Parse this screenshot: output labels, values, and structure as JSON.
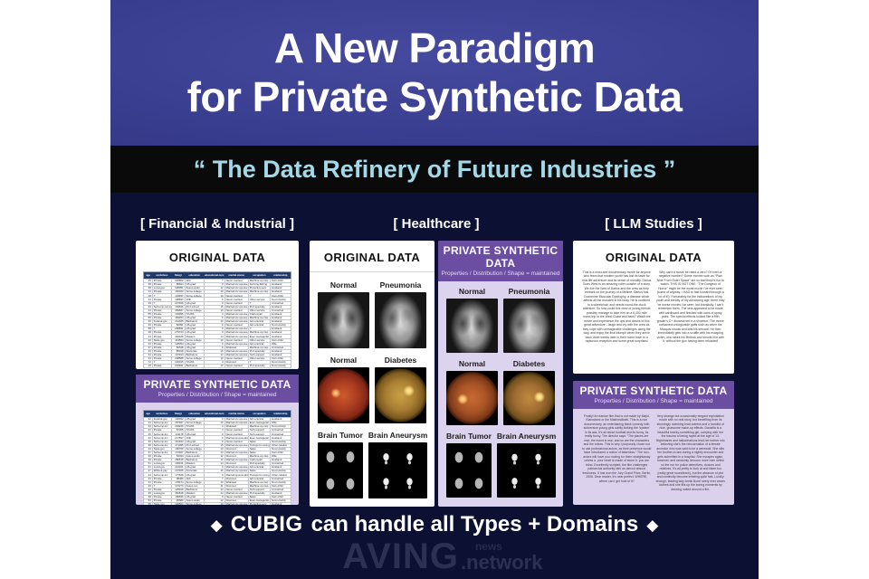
{
  "title": {
    "line1": "A New Paradigm",
    "line2": "for Private Synthetic Data"
  },
  "banner": "“ The Data Refinery of Future Industries ”",
  "columns": {
    "financial": "[ Financial & Industrial ]",
    "healthcare": "[ Healthcare ]",
    "llm": "[ LLM Studies ]"
  },
  "labels": {
    "original": "ORIGINAL DATA",
    "synthetic": "PRIVATE SYNTHETIC DATA",
    "synthetic_sub": "Properties / Distribution / Shape = maintained"
  },
  "financial": {
    "table_headers": [
      "age",
      "workclass",
      "fnlwgt",
      "education",
      "educational-num",
      "marital-status",
      "occupation",
      "relationship"
    ],
    "original_rows": [
      [
        "25",
        "Private",
        "226802",
        "11th",
        "7",
        "Never-married",
        "Machine-op-insp",
        "Own-child"
      ],
      [
        "38",
        "Private",
        "89814",
        "HS-grad",
        "9",
        "Married-civ-spouse",
        "Farming-fishing",
        "Husband"
      ],
      [
        "28",
        "Local-gov",
        "336951",
        "Assoc-acdm",
        "12",
        "Married-civ-spouse",
        "Protective-serv",
        "Husband"
      ],
      [
        "44",
        "Private",
        "160323",
        "Some-college",
        "10",
        "Married-civ-spouse",
        "Machine-op-insp",
        "Husband"
      ],
      [
        "18",
        "?",
        "103497",
        "Some-college",
        "10",
        "Never-married",
        "?",
        "Own-child"
      ],
      [
        "34",
        "Private",
        "198693",
        "10th",
        "6",
        "Never-married",
        "Other-service",
        "Not-in-family"
      ],
      [
        "29",
        "?",
        "227026",
        "HS-grad",
        "9",
        "Never-married",
        "?",
        "Unmarried"
      ],
      [
        "63",
        "Self-emp-not-inc",
        "104626",
        "Prof-school",
        "15",
        "Married-civ-spouse",
        "Prof-specialty",
        "Husband"
      ],
      [
        "24",
        "Private",
        "369667",
        "Some-college",
        "10",
        "Never-married",
        "Other-service",
        "Unmarried"
      ],
      [
        "55",
        "Private",
        "104996",
        "7th-8th",
        "4",
        "Married-civ-spouse",
        "Craft-repair",
        "Husband"
      ],
      [
        "65",
        "Private",
        "184454",
        "HS-grad",
        "9",
        "Married-civ-spouse",
        "Machine-op-insp",
        "Husband"
      ],
      [
        "36",
        "Federal-gov",
        "212465",
        "Bachelors",
        "13",
        "Married-civ-spouse",
        "Adm-clerical",
        "Husband"
      ],
      [
        "26",
        "Private",
        "82091",
        "HS-grad",
        "9",
        "Never-married",
        "Adm-clerical",
        "Not-in-family"
      ],
      [
        "58",
        "?",
        "299831",
        "HS-grad",
        "9",
        "Married-civ-spouse",
        "?",
        "Husband"
      ],
      [
        "48",
        "Private",
        "279724",
        "HS-grad",
        "9",
        "Married-civ-spouse",
        "Machine-op-insp",
        "Husband"
      ],
      [
        "43",
        "Private",
        "346189",
        "Masters",
        "14",
        "Married-civ-spouse",
        "Exec-managerial",
        "Husband"
      ],
      [
        "20",
        "State-gov",
        "444554",
        "Some-college",
        "10",
        "Never-married",
        "Other-service",
        "Own-child"
      ],
      [
        "43",
        "Private",
        "128354",
        "HS-grad",
        "9",
        "Married-civ-spouse",
        "Adm-clerical",
        "Wife"
      ],
      [
        "37",
        "Private",
        "60548",
        "HS-grad",
        "9",
        "Widowed",
        "Machine-op-insp",
        "Unmarried"
      ],
      [
        "40",
        "Private",
        "85019",
        "Doctorate",
        "16",
        "Married-civ-spouse",
        "Prof-specialty",
        "Husband"
      ],
      [
        "34",
        "Private",
        "107914",
        "Bachelors",
        "13",
        "Married-civ-spouse",
        "Tech-support",
        "Husband"
      ],
      [
        "34",
        "Private",
        "238588",
        "Some-college",
        "10",
        "Never-married",
        "Other-service",
        "Own-child"
      ],
      [
        "72",
        "?",
        "132015",
        "7th-8th",
        "4",
        "Divorced",
        "?",
        "Not-in-family"
      ],
      [
        "25",
        "Private",
        "220931",
        "Bachelors",
        "13",
        "Never-married",
        "Prof-specialty",
        "Not-in-family"
      ]
    ],
    "synthetic_rows": [
      [
        "32",
        "Federal-gov",
        "140092",
        "HS-grad",
        "9",
        "Married-civ-spouse",
        "Adm-clerical",
        "Husband"
      ],
      [
        "41",
        "Self-emp-inc",
        "287927",
        "Some-college",
        "10",
        "Married-civ-spouse",
        "Exec-managerial",
        "Wife"
      ],
      [
        "23",
        "Self-emp-inc",
        "204226",
        "7th-8th",
        "4",
        "Widowed",
        "Machine-op-insp",
        "Not-in-family"
      ],
      [
        "41",
        "Private",
        "87205",
        "7th-8th",
        "4",
        "Never-married",
        "Tech-support",
        "Unmarried"
      ],
      [
        "25",
        "Self-emp-inc",
        "131178",
        "HS-grad",
        "9",
        "Never-married",
        "Tech-support",
        "Unmarried"
      ],
      [
        "42",
        "Self-emp-inc",
        "217597",
        "10th",
        "6",
        "Married-spouse-absent",
        "Exec-managerial",
        "Husband"
      ],
      [
        "30",
        "Self-emp-inc",
        "151910",
        "HS-grad",
        "9",
        "Never-married",
        "Sales",
        "Not-in-family"
      ],
      [
        "38",
        "Self-emp-inc",
        "171095",
        "Prof-school",
        "15",
        "Married-civ-spouse",
        "Transport-moving",
        "Other-relative"
      ],
      [
        "23",
        "State-gov",
        "190709",
        "Some-college",
        "10",
        "Divorced",
        "Sales",
        "Not-in-family"
      ],
      [
        "37",
        "Self-emp-inc",
        "172927",
        "Bachelors",
        "13",
        "Married-civ-spouse",
        "Sales",
        "Own-child"
      ],
      [
        "30",
        "Private",
        "54334",
        "Assoc-acdm",
        "12",
        "Divorced",
        "Machine-op-insp",
        "Wife"
      ],
      [
        "29",
        "Private",
        "280618",
        "Bachelors",
        "13",
        "Married-civ-spouse",
        "Craft-repair",
        "Husband"
      ],
      [
        "51",
        "Local-gov",
        "106151",
        "Masters",
        "14",
        "Divorced",
        "Prof-specialty",
        "Unmarried"
      ],
      [
        "61",
        "Local-gov",
        "213321",
        "HS-grad",
        "9",
        "Married-civ-spouse",
        "Adm-clerical",
        "Husband"
      ],
      [
        "27",
        "Without-pay",
        "237466",
        "Doctorate",
        "16",
        "Married-civ-spouse",
        "Sales",
        "Not-in-family"
      ],
      [
        "34",
        "Self-emp-inc",
        "177828",
        "HS-grad",
        "9",
        "Married-spouse-absent",
        "Transport-moving",
        "Other-relative"
      ],
      [
        "44",
        "Private",
        "98466",
        "11th",
        "7",
        "Divorced",
        "Adm-clerical",
        "Unmarried"
      ],
      [
        "31",
        "Private",
        "178474",
        "Some-college",
        "10",
        "Widowed",
        "Machine-op-insp",
        "Not-in-family"
      ],
      [
        "46",
        "?",
        "172274",
        "Assoc-voc",
        "11",
        "Divorced",
        "Machine-op-insp",
        "Own-child"
      ],
      [
        "22",
        "Private",
        "125010",
        "Bachelors",
        "13",
        "Never-married",
        "Tech-support",
        "Unmarried"
      ],
      [
        "39",
        "Local-gov",
        "352628",
        "Masters",
        "14",
        "Married-civ-spouse",
        "Prof-specialty",
        "Husband"
      ],
      [
        "28",
        "Private",
        "190836",
        "HS-grad",
        "9",
        "Never-married",
        "Sales",
        "Own-child"
      ],
      [
        "53",
        "Private",
        "95680",
        "Assoc-acdm",
        "12",
        "Divorced",
        "Exec-managerial",
        "Not-in-family"
      ],
      [
        "35",
        "State-gov",
        "140564",
        "Some-college",
        "10",
        "Married-civ-spouse",
        "Protective-serv",
        "Husband"
      ],
      [
        "49",
        "Private",
        "268022",
        "HS-grad",
        "9",
        "Married-civ-spouse",
        "Craft-repair",
        "Husband"
      ],
      [
        "26",
        "Private",
        "154785",
        "Bachelors",
        "13",
        "Never-married",
        "Adm-clerical",
        "Not-in-family"
      ]
    ]
  },
  "healthcare": {
    "original_rows": [
      {
        "left": "Normal",
        "right": "Pneumonia"
      },
      {
        "left": "Normal",
        "right": "Diabetes"
      },
      {
        "left": "Brain Tumor",
        "right": "Brain Aneurysm"
      }
    ],
    "synthetic_rows": [
      {
        "left": "Normal",
        "right": "Pneumonia"
      },
      {
        "left": "Normal",
        "right": "Diabetes"
      },
      {
        "left": "Brain Tumor",
        "right": "Brain Aneurysm"
      }
    ]
  },
  "llm": {
    "original_left": "This is a must-see documentary movie for anyone who fears that modern youth has lost its taste for real-life adventure and its sense of morality. Darius Goes West is an amazing roller-coaster of a story. We live the lives of Darius and the crew as they embark on the journey of a lifetime. Darius has Duchenne Muscular Dystrophy, a disease which affects all the muscles in his body. He is confined to a wheelchair, and needs round-the-clock attention. So how could this crew of young friends possibly manage to take him on a 6,000 mile round-trip to the West Coast and back? Watch the movie and experience the ups and downs of this great adventure - laugh and cry with the crew as they cope with unimaginable challenges along the way, and enjoy the final triumph when they arrive back three weeks later in their home town to a rapturous reception and some great surprises!",
    "original_right": "Why can't a movie be rated a zero? Or even a negative number? Some movies such as “Plan Nine From Outer Space” are so bad they're fun to watch. THIS IS NOT ONE. “The Dungeon of Horror” might be the worst movie I've ever seen (some of anyway. I HAD to fast forward through a lot of it!). Fortunately for the indiscretions of my youth and senility of my advancing age, there may be worse movies I've seen, but thankfully, I can't remember them. The sets appeared to be made with cardboard and finished with cans of spray paint. The special effects looked like a fifth grader's C+ diorama set in a shoebox. The movie contained unforgivable gaffs such as when the Marquis shoots and kills his servant. He then immediately gets into a scuffle with his escaping victim, who takes his flintlock and shoots him with it, without the gun having been reloaded!",
    "synthetic_left": "Finally! An Iranian film that is not made by Majid, Kiarostami or the Makhmalbafs. This is a non documentary, an entertaining black comedy with subversive young girls subtly kicking the 'system' in its ass. It's all about football and its funny, its really funny. The director says: “The places are real, the event is real, and so are the characters and the extras. This is why I purposely chose not to use professional actors, as their presence would have introduced a notion of falseness.” The non-actors will have you rooting for them straightaway unless a. your heart is made of stone b. you are blind. Excellently scripted, the film challenges patriarchal authority with an almost absurd freshness. It has won the Jury Grand Prize, Berlin, 2006. Dear reader, it's near perfect. WHERE, where can I get hold of it?",
    "synthetic_right": "Very strange but occasionally elegant exploitation movie with no real story, but benefiting from its stunningly ravishing lead actress and a handful of nice, gruesome make-up effects. Daniella is a beautiful twenty-something girl, carrying with her the trauma of being raped at the age of 13. Nightmares and hallucinations lead her further into believing she's the reincarnation of a female ancestor who was said to be a werewolf. She slits her brother-in-law during a nightly encounter and gets submitted in a hospital. She escapes again, however, and randomly devours more men whilst on the run for police detectives, doctors and relatives. It's all pretty to look at and listen too (really great soundtrack), but the absence of plot and continuity become irritating quite fast. Luckily enough, leading lady Annik Borel rarely ever wears clothes and she fills up the boring moments by dancing naked around a fire."
  },
  "tagline": {
    "diamond": "◆",
    "brand": "CUBIG",
    "rest": "can handle all Types + Domains"
  },
  "watermark": {
    "main": "AVING",
    "news": "news",
    "network": ".network"
  },
  "colors": {
    "hero_blue": "#3a3e90",
    "banner_bg": "#0a0a0a",
    "banner_text": "#a2d8e8",
    "body_navy": "#0c1033",
    "purple_header": "#6b4da1",
    "lavender_card": "#dbd1ec",
    "table_header_blue": "#1f3a6c"
  }
}
